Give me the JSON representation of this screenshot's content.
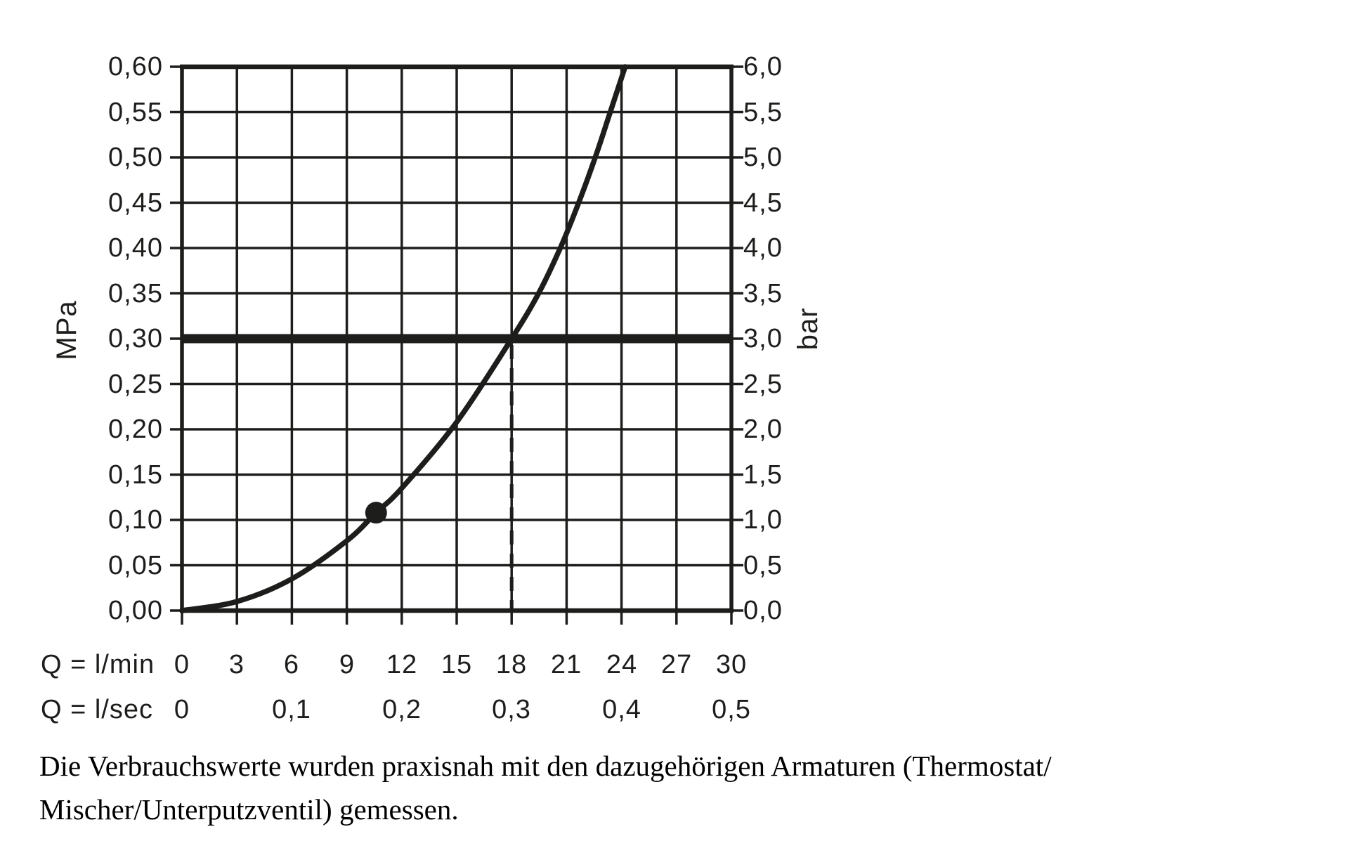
{
  "colors": {
    "ink": "#1d1d1b",
    "background": "#ffffff"
  },
  "chart_data": {
    "type": "line",
    "grid": true,
    "legend": false,
    "x": {
      "primary_label": "Q = l/min",
      "primary_ticks": [
        "0",
        "3",
        "6",
        "9",
        "12",
        "15",
        "18",
        "21",
        "24",
        "27",
        "30"
      ],
      "secondary_label": "Q = l/sec",
      "secondary_ticks": [
        "0",
        "0,1",
        "0,2",
        "0,3",
        "0,4",
        "0,5"
      ],
      "range_l_min": [
        0,
        30
      ]
    },
    "y_left": {
      "unit": "MPa",
      "ticks": [
        "0,60",
        "0,55",
        "0,50",
        "0,45",
        "0,40",
        "0,35",
        "0,30",
        "0,25",
        "0,20",
        "0,15",
        "0,10",
        "0,05",
        "0,00"
      ],
      "range_mpa": [
        0,
        0.6
      ]
    },
    "y_right": {
      "unit": "bar",
      "ticks": [
        "6,0",
        "5,5",
        "5,0",
        "4,5",
        "4,0",
        "3,5",
        "3,0",
        "2,5",
        "2,0",
        "1,5",
        "1,0",
        "0,5",
        "0,0"
      ],
      "range_bar": [
        0,
        6
      ]
    },
    "series": [
      {
        "name": "flow-pressure-curve",
        "points_q_lmin_p_mpa": [
          [
            0,
            0
          ],
          [
            3,
            0.01
          ],
          [
            6,
            0.035
          ],
          [
            9,
            0.077
          ],
          [
            10.6,
            0.108
          ],
          [
            12,
            0.135
          ],
          [
            15,
            0.208
          ],
          [
            18,
            0.3
          ],
          [
            19.5,
            0.351
          ],
          [
            20.7,
            0.402
          ],
          [
            21.7,
            0.452
          ],
          [
            22.6,
            0.502
          ],
          [
            23.4,
            0.551
          ],
          [
            24.2,
            0.6
          ]
        ]
      }
    ],
    "marker_point": {
      "q_l_min": 10.6,
      "p_mpa": 0.108
    },
    "reference_pressure_line": {
      "p_mpa": 0.3,
      "p_bar": 3.0
    },
    "dashed_guide_q_l_min": 18
  },
  "caption": {
    "line1": "Die Verbrauchswerte wurden praxisnah mit den dazugehörigen Armaturen (Thermostat/",
    "line2": "Mischer/Unterputzventil) gemessen."
  }
}
